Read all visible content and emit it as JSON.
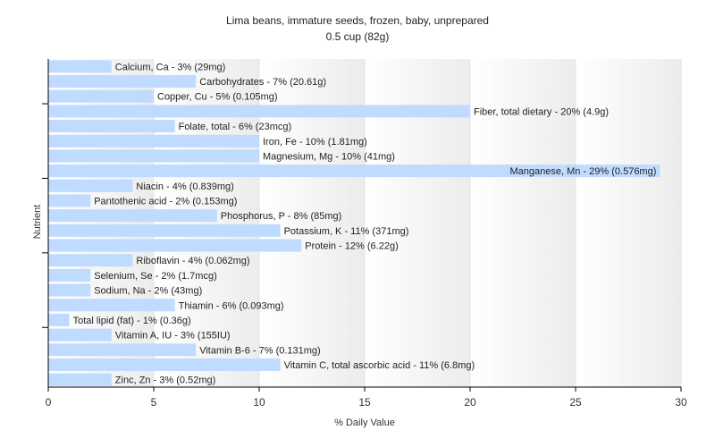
{
  "chart_data": {
    "type": "bar",
    "orientation": "horizontal",
    "title": "Lima beans, immature seeds, frozen, baby, unprepared",
    "subtitle": "0.5 cup (82g)",
    "xlabel": "% Daily Value",
    "ylabel": "Nutrient",
    "xlim": [
      0,
      30
    ],
    "xticks": [
      0,
      5,
      10,
      15,
      20,
      25,
      30
    ],
    "grid": "vertical bands",
    "bar_color": "#bfdbff",
    "categories": [
      "Calcium, Ca",
      "Carbohydrates",
      "Copper, Cu",
      "Fiber, total dietary",
      "Folate, total",
      "Iron, Fe",
      "Magnesium, Mg",
      "Manganese, Mn",
      "Niacin",
      "Pantothenic acid",
      "Phosphorus, P",
      "Potassium, K",
      "Protein",
      "Riboflavin",
      "Selenium, Se",
      "Sodium, Na",
      "Thiamin",
      "Total lipid (fat)",
      "Vitamin A, IU",
      "Vitamin B-6",
      "Vitamin C, total ascorbic acid",
      "Zinc, Zn"
    ],
    "values": [
      3,
      7,
      5,
      20,
      6,
      10,
      10,
      29,
      4,
      2,
      8,
      11,
      12,
      4,
      2,
      2,
      6,
      1,
      3,
      7,
      11,
      3
    ],
    "labels": [
      "Calcium, Ca - 3% (29mg)",
      "Carbohydrates - 7% (20.61g)",
      "Copper, Cu - 5% (0.105mg)",
      "Fiber, total dietary - 20% (4.9g)",
      "Folate, total - 6% (23mcg)",
      "Iron, Fe - 10% (1.81mg)",
      "Magnesium, Mg - 10% (41mg)",
      "Manganese, Mn - 29% (0.576mg)",
      "Niacin - 4% (0.839mg)",
      "Pantothenic acid - 2% (0.153mg)",
      "Phosphorus, P - 8% (85mg)",
      "Potassium, K - 11% (371mg)",
      "Protein - 12% (6.22g)",
      "Riboflavin - 4% (0.062mg)",
      "Selenium, Se - 2% (1.7mcg)",
      "Sodium, Na - 2% (43mg)",
      "Thiamin - 6% (0.093mg)",
      "Total lipid (fat) - 1% (0.36g)",
      "Vitamin A, IU - 3% (155IU)",
      "Vitamin B-6 - 7% (0.131mg)",
      "Vitamin C, total ascorbic acid - 11% (6.8mg)",
      "Zinc, Zn - 3% (0.52mg)"
    ]
  }
}
